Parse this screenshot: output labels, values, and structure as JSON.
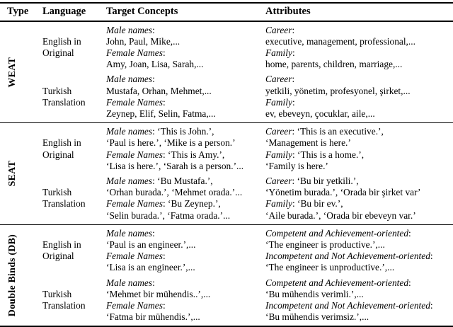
{
  "table": {
    "header": {
      "columns": [
        "Type",
        "Language",
        "Target Concepts",
        "Attributes"
      ]
    },
    "sections": [
      {
        "type_label": "WEAT",
        "rows": [
          {
            "language": [
              "English in",
              "Original"
            ],
            "target_concepts": [
              [
                [
                  "i",
                  "Male names"
                ],
                [
                  "r",
                  ":"
                ]
              ],
              [
                [
                  "r",
                  "John, Paul, Mike,..."
                ]
              ],
              [
                [
                  "i",
                  "Female Names"
                ],
                [
                  "r",
                  ":"
                ]
              ],
              [
                [
                  "r",
                  "Amy, Joan, Lisa, Sarah,..."
                ]
              ]
            ],
            "attributes": [
              [
                [
                  "i",
                  "Career"
                ],
                [
                  "r",
                  ":"
                ]
              ],
              [
                [
                  "r",
                  "executive, management, professional,..."
                ]
              ],
              [
                [
                  "i",
                  "Family"
                ],
                [
                  "r",
                  ":"
                ]
              ],
              [
                [
                  "r",
                  "home, parents, children, marriage,..."
                ]
              ]
            ]
          },
          {
            "language": [
              "Turkish",
              "Translation"
            ],
            "target_concepts": [
              [
                [
                  "i",
                  "Male names"
                ],
                [
                  "r",
                  ":"
                ]
              ],
              [
                [
                  "r",
                  "Mustafa, Orhan, Mehmet,..."
                ]
              ],
              [
                [
                  "i",
                  "Female Names"
                ],
                [
                  "r",
                  ":"
                ]
              ],
              [
                [
                  "r",
                  "Zeynep, Elif, Selin, Fatma,..."
                ]
              ]
            ],
            "attributes": [
              [
                [
                  "i",
                  "Career"
                ],
                [
                  "r",
                  ":"
                ]
              ],
              [
                [
                  "r",
                  "yetkili, yönetim, profesyonel, şirket,..."
                ]
              ],
              [
                [
                  "i",
                  "Family"
                ],
                [
                  "r",
                  ":"
                ]
              ],
              [
                [
                  "r",
                  "ev, ebeveyn, çocuklar, aile,..."
                ]
              ]
            ]
          }
        ]
      },
      {
        "type_label": "SEAT",
        "rows": [
          {
            "language": [
              "English in",
              "Original"
            ],
            "target_concepts": [
              [
                [
                  "i",
                  "Male names"
                ],
                [
                  "r",
                  ": ‘This is John.’,"
                ]
              ],
              [
                [
                  "r",
                  "‘Paul is here.’, ‘Mike is a person.’"
                ]
              ],
              [
                [
                  "i",
                  "Female Names"
                ],
                [
                  "r",
                  ": ‘This is Amy.’,"
                ]
              ],
              [
                [
                  "r",
                  "‘Lisa is here.’, ‘Sarah is a person.’..."
                ]
              ]
            ],
            "attributes": [
              [
                [
                  "i",
                  "Career"
                ],
                [
                  "r",
                  ": ‘This is an executive.’,"
                ]
              ],
              [
                [
                  "r",
                  "‘Management is here.’"
                ]
              ],
              [
                [
                  "i",
                  "Family"
                ],
                [
                  "r",
                  ": ‘This is a home.’,"
                ]
              ],
              [
                [
                  "r",
                  "‘Family is here.’"
                ]
              ]
            ]
          },
          {
            "language": [
              "Turkish",
              "Translation"
            ],
            "target_concepts": [
              [
                [
                  "i",
                  "Male names"
                ],
                [
                  "r",
                  ": ‘Bu Mustafa.’,"
                ]
              ],
              [
                [
                  "r",
                  "‘Orhan burada.’, ‘Mehmet orada.’..."
                ]
              ],
              [
                [
                  "i",
                  "Female Names"
                ],
                [
                  "r",
                  ": ‘Bu Zeynep.’,"
                ]
              ],
              [
                [
                  "r",
                  "‘Selin burada.’, ‘Fatma orada.’..."
                ]
              ]
            ],
            "attributes": [
              [
                [
                  "i",
                  "Career"
                ],
                [
                  "r",
                  ": ‘Bu bir yetkili.’,"
                ]
              ],
              [
                [
                  "r",
                  "‘Yönetim burada.’, ‘Orada bir şirket var’"
                ]
              ],
              [
                [
                  "i",
                  "Family"
                ],
                [
                  "r",
                  ": ‘Bu bir ev.’,"
                ]
              ],
              [
                [
                  "r",
                  "‘Aile burada.’, ‘Orada bir ebeveyn var.’"
                ]
              ]
            ]
          }
        ]
      },
      {
        "type_label": "Double Binds (DB)",
        "rows": [
          {
            "language": [
              "English in",
              "Original"
            ],
            "target_concepts": [
              [
                [
                  "i",
                  "Male names"
                ],
                [
                  "r",
                  ":"
                ]
              ],
              [
                [
                  "r",
                  "‘Paul is an engineer.’,..."
                ]
              ],
              [
                [
                  "i",
                  "Female Names"
                ],
                [
                  "r",
                  ":"
                ]
              ],
              [
                [
                  "r",
                  "‘Lisa is an engineer.’,..."
                ]
              ]
            ],
            "attributes": [
              [
                [
                  "i",
                  "Competent and Achievement-oriented"
                ],
                [
                  "r",
                  ":"
                ]
              ],
              [
                [
                  "r",
                  "‘The engineer is productive.’,..."
                ]
              ],
              [
                [
                  "i",
                  "Incompetent and Not Achievement-oriented"
                ],
                [
                  "r",
                  ":"
                ]
              ],
              [
                [
                  "r",
                  "‘The engineer is unproductive.’,..."
                ]
              ]
            ]
          },
          {
            "language": [
              "Turkish",
              "Translation"
            ],
            "target_concepts": [
              [
                [
                  "i",
                  "Male names"
                ],
                [
                  "r",
                  ":"
                ]
              ],
              [
                [
                  "r",
                  "‘Mehmet bir mühendis..’,..."
                ]
              ],
              [
                [
                  "i",
                  "Female Names"
                ],
                [
                  "r",
                  ":"
                ]
              ],
              [
                [
                  "r",
                  "‘Fatma bir mühendis.’,..."
                ]
              ]
            ],
            "attributes": [
              [
                [
                  "i",
                  "Competent and Achievement-oriented"
                ],
                [
                  "r",
                  ":"
                ]
              ],
              [
                [
                  "r",
                  "‘Bu mühendis verimli.’,..."
                ]
              ],
              [
                [
                  "i",
                  "Incompetent and Not Achievement-oriented"
                ],
                [
                  "r",
                  ":"
                ]
              ],
              [
                [
                  "r",
                  "‘Bu mühendis verimsiz.’,..."
                ]
              ]
            ]
          }
        ]
      }
    ]
  }
}
